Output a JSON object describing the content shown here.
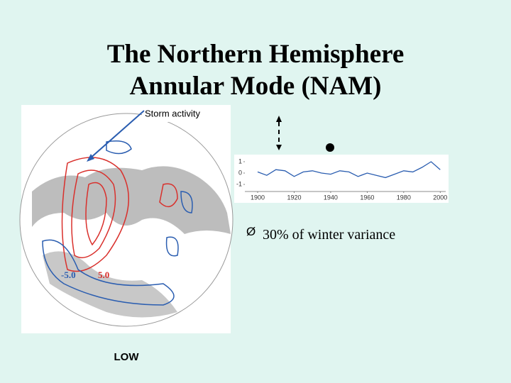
{
  "title": [
    "The Northern Hemisphere",
    "Annular Mode (NAM)"
  ],
  "map": {
    "callout": "Storm activity",
    "labels": [
      "5.0",
      "-5.0"
    ],
    "low_label": "LOW"
  },
  "bullet": {
    "marker": "Ø",
    "text": "30% of winter variance"
  },
  "inset": {
    "xlim": [
      1893,
      2003
    ],
    "ylim": [
      -1.5,
      1.5
    ],
    "xticks": [
      1900,
      1920,
      1940,
      1960,
      1980,
      2000
    ],
    "yticks": [
      1,
      0,
      -1
    ],
    "x": [
      1900,
      1905,
      1910,
      1915,
      1920,
      1925,
      1930,
      1935,
      1940,
      1945,
      1950,
      1955,
      1960,
      1965,
      1970,
      1975,
      1980,
      1985,
      1990,
      1995,
      2000
    ],
    "values": [
      0.1,
      -0.2,
      0.3,
      0.2,
      -0.3,
      0.1,
      0.2,
      0.0,
      -0.1,
      0.2,
      0.1,
      -0.3,
      0.0,
      -0.2,
      -0.4,
      -0.1,
      0.2,
      0.1,
      0.5,
      1.0,
      0.3
    ],
    "color": "#2a5db0"
  }
}
